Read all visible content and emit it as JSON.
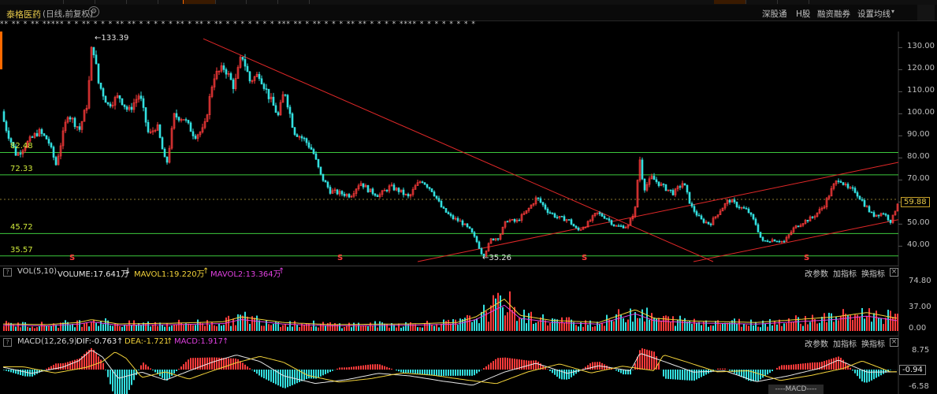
{
  "header": {
    "stock_name": "泰格医药",
    "mode": "(日线,前复权)",
    "links": [
      "深股通",
      "H股",
      "融资融券",
      "设置均线"
    ],
    "marks_row": "** ** * ** ***** * * ** * * * ** ** * * * * * ** * ** * ** * * * * * * * *** ** * ** * * * ** ** * * * * **** * * * * * * * *"
  },
  "price_panel": {
    "y_ticks": [
      "130.00",
      "120.00",
      "110.00",
      "100.00",
      "90.00",
      "80.00",
      "70.00",
      "60.00",
      "50.00",
      "40.00"
    ],
    "levels": [
      "82.48",
      "72.33",
      "45.72",
      "35.57"
    ],
    "current": "59.88",
    "max_label": "133.39",
    "min_label": "35.26",
    "signals": [
      "S",
      "S",
      "S",
      "S"
    ],
    "colors": {
      "up": "#ff3b3b",
      "down": "#33e0e0",
      "level": "#3cc83c",
      "trend": "#e02828"
    }
  },
  "volume_panel": {
    "title": "VOL(5,10)",
    "volume": "VOLUME:17.641万",
    "mavol1": "MAVOL1:19.220万",
    "mavol2": "MAVOL2:13.364万",
    "y_ticks": [
      "74.80",
      "37.00",
      "0.00"
    ],
    "buttons": [
      "改参数",
      "加指标",
      "换指标"
    ]
  },
  "macd_panel": {
    "title": "MACD(12,26,9)",
    "dif": "DIF:-0.763",
    "dea": "DEA:-1.721",
    "macd": "MACD:1.917",
    "y_ticks": [
      "8.75",
      "-0.94",
      "-6.58"
    ],
    "footer": "----MACD----",
    "buttons": [
      "改参数",
      "加指标",
      "换指标"
    ]
  },
  "chart_data": {
    "type": "line",
    "title": "",
    "ylim": [
      33,
      136
    ],
    "price_anchors": [
      [
        0,
        101
      ],
      [
        8,
        92
      ],
      [
        20,
        81
      ],
      [
        34,
        87
      ],
      [
        48,
        92
      ],
      [
        60,
        88
      ],
      [
        70,
        77
      ],
      [
        85,
        100
      ],
      [
        100,
        93
      ],
      [
        110,
        105
      ],
      [
        116,
        133.39
      ],
      [
        124,
        114
      ],
      [
        136,
        104
      ],
      [
        150,
        108
      ],
      [
        162,
        101
      ],
      [
        176,
        109
      ],
      [
        188,
        90
      ],
      [
        198,
        95
      ],
      [
        210,
        76
      ],
      [
        220,
        99
      ],
      [
        232,
        98
      ],
      [
        246,
        90
      ],
      [
        258,
        93
      ],
      [
        270,
        117
      ],
      [
        284,
        121
      ],
      [
        296,
        112
      ],
      [
        306,
        127
      ],
      [
        316,
        115
      ],
      [
        328,
        118
      ],
      [
        340,
        108
      ],
      [
        352,
        99
      ],
      [
        360,
        111
      ],
      [
        372,
        92
      ],
      [
        386,
        88
      ],
      [
        396,
        83
      ],
      [
        406,
        72
      ],
      [
        418,
        65
      ],
      [
        430,
        64
      ],
      [
        444,
        63
      ],
      [
        456,
        69
      ],
      [
        468,
        65
      ],
      [
        480,
        63
      ],
      [
        494,
        67
      ],
      [
        506,
        65
      ],
      [
        518,
        62
      ],
      [
        526,
        67
      ],
      [
        534,
        70
      ],
      [
        548,
        65
      ],
      [
        560,
        57
      ],
      [
        572,
        53
      ],
      [
        584,
        51
      ],
      [
        596,
        47
      ],
      [
        604,
        42
      ],
      [
        612,
        35.26
      ],
      [
        622,
        43
      ],
      [
        632,
        44
      ],
      [
        642,
        52
      ],
      [
        654,
        51
      ],
      [
        668,
        56
      ],
      [
        680,
        62
      ],
      [
        694,
        56
      ],
      [
        706,
        53
      ],
      [
        720,
        52
      ],
      [
        732,
        47
      ],
      [
        744,
        50
      ],
      [
        756,
        55
      ],
      [
        768,
        53
      ],
      [
        780,
        49
      ],
      [
        796,
        49
      ],
      [
        806,
        58
      ],
      [
        810,
        82
      ],
      [
        816,
        66
      ],
      [
        826,
        71
      ],
      [
        840,
        67
      ],
      [
        854,
        64
      ],
      [
        866,
        69
      ],
      [
        876,
        58
      ],
      [
        888,
        52
      ],
      [
        900,
        50
      ],
      [
        912,
        56
      ],
      [
        924,
        61
      ],
      [
        936,
        58
      ],
      [
        948,
        56
      ],
      [
        958,
        50
      ],
      [
        966,
        42
      ],
      [
        980,
        43
      ],
      [
        994,
        42
      ],
      [
        1006,
        48
      ],
      [
        1018,
        51
      ],
      [
        1030,
        53
      ],
      [
        1044,
        58
      ],
      [
        1056,
        67
      ],
      [
        1064,
        71
      ],
      [
        1074,
        66
      ],
      [
        1084,
        65
      ],
      [
        1094,
        60
      ],
      [
        1106,
        54
      ],
      [
        1120,
        55
      ],
      [
        1130,
        51
      ],
      [
        1138,
        59.88
      ]
    ],
    "volume_anchors": [
      [
        0,
        10
      ],
      [
        60,
        9
      ],
      [
        100,
        12
      ],
      [
        116,
        16
      ],
      [
        150,
        10
      ],
      [
        220,
        11
      ],
      [
        284,
        13
      ],
      [
        306,
        20
      ],
      [
        360,
        12
      ],
      [
        420,
        9
      ],
      [
        520,
        10
      ],
      [
        580,
        12
      ],
      [
        604,
        20
      ],
      [
        640,
        45
      ],
      [
        660,
        22
      ],
      [
        700,
        15
      ],
      [
        760,
        12
      ],
      [
        806,
        30
      ],
      [
        830,
        18
      ],
      [
        880,
        14
      ],
      [
        960,
        12
      ],
      [
        1060,
        20
      ],
      [
        1100,
        26
      ],
      [
        1138,
        18
      ]
    ],
    "macd_anchors": [
      [
        0,
        1.2
      ],
      [
        40,
        -1.5
      ],
      [
        80,
        1.0
      ],
      [
        100,
        3.5
      ],
      [
        116,
        7.8
      ],
      [
        130,
        5.0
      ],
      [
        150,
        -3.5
      ],
      [
        180,
        -1.0
      ],
      [
        210,
        -4.2
      ],
      [
        240,
        -0.5
      ],
      [
        270,
        3.0
      ],
      [
        300,
        5.8
      ],
      [
        330,
        3.2
      ],
      [
        360,
        -2.5
      ],
      [
        400,
        -5.5
      ],
      [
        440,
        -4.0
      ],
      [
        480,
        -1.5
      ],
      [
        520,
        -2.5
      ],
      [
        560,
        -4.5
      ],
      [
        600,
        -6.2
      ],
      [
        640,
        -1.0
      ],
      [
        680,
        2.5
      ],
      [
        720,
        -1.5
      ],
      [
        760,
        1.5
      ],
      [
        800,
        -0.5
      ],
      [
        812,
        6.5
      ],
      [
        840,
        3.5
      ],
      [
        880,
        -1.0
      ],
      [
        920,
        -0.5
      ],
      [
        960,
        -4.8
      ],
      [
        1000,
        -2.5
      ],
      [
        1040,
        0.5
      ],
      [
        1064,
        3.8
      ],
      [
        1100,
        -1.0
      ],
      [
        1138,
        -0.9
      ]
    ]
  }
}
